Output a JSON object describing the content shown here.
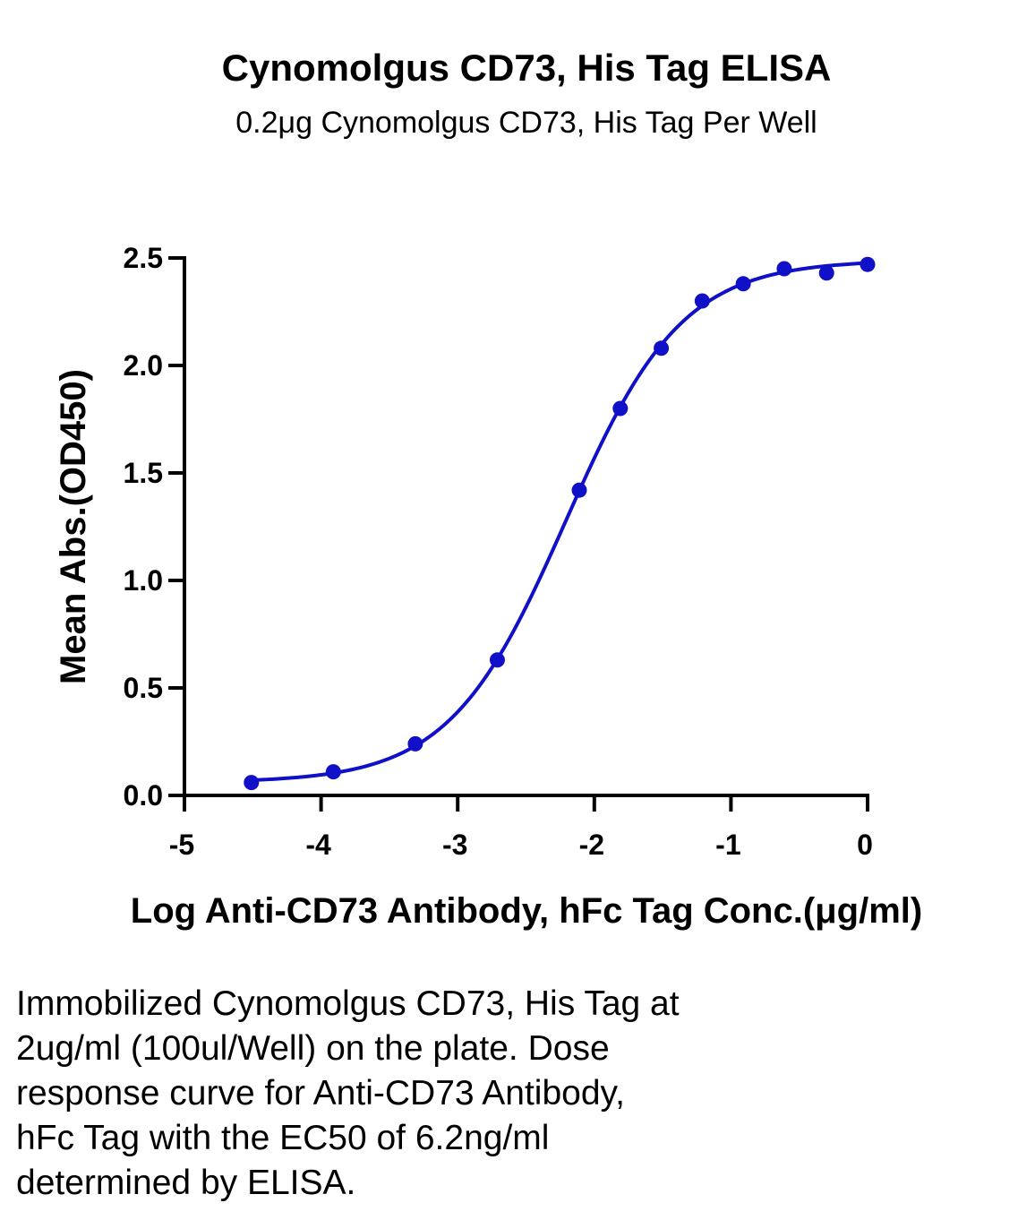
{
  "chart_data": {
    "type": "scatter",
    "title": "Cynomolgus CD73, His Tag ELISA",
    "subtitle": "0.2μg Cynomolgus CD73, His Tag Per Well",
    "xlabel": "Log Anti-CD73 Antibody, hFc Tag Conc.(μg/ml)",
    "ylabel": "Mean Abs.(OD450)",
    "xlim": [
      -5,
      0
    ],
    "ylim": [
      0,
      2.5
    ],
    "x_ticks": [
      "-5",
      "-4",
      "-3",
      "-2",
      "-1",
      "0"
    ],
    "y_ticks": [
      "0.0",
      "0.5",
      "1.0",
      "1.5",
      "2.0",
      "2.5"
    ],
    "grid": false,
    "series": [
      {
        "color": "#1010c8",
        "x": [
          -4.51,
          -3.91,
          -3.31,
          -2.71,
          -2.11,
          -1.81,
          -1.51,
          -1.21,
          -0.91,
          -0.61,
          -0.3,
          0.0
        ],
        "y": [
          0.06,
          0.11,
          0.24,
          0.63,
          1.42,
          1.8,
          2.08,
          2.3,
          2.38,
          2.45,
          2.43,
          2.47
        ],
        "fit": "four-parameter logistic"
      }
    ]
  },
  "caption": {
    "lines": [
      "Immobilized Cynomolgus CD73, His Tag at",
      "2ug/ml (100ul/Well) on the plate. Dose",
      "response curve for Anti-CD73 Antibody,",
      "hFc Tag with the EC50 of 6.2ng/ml",
      "determined by ELISA."
    ]
  }
}
